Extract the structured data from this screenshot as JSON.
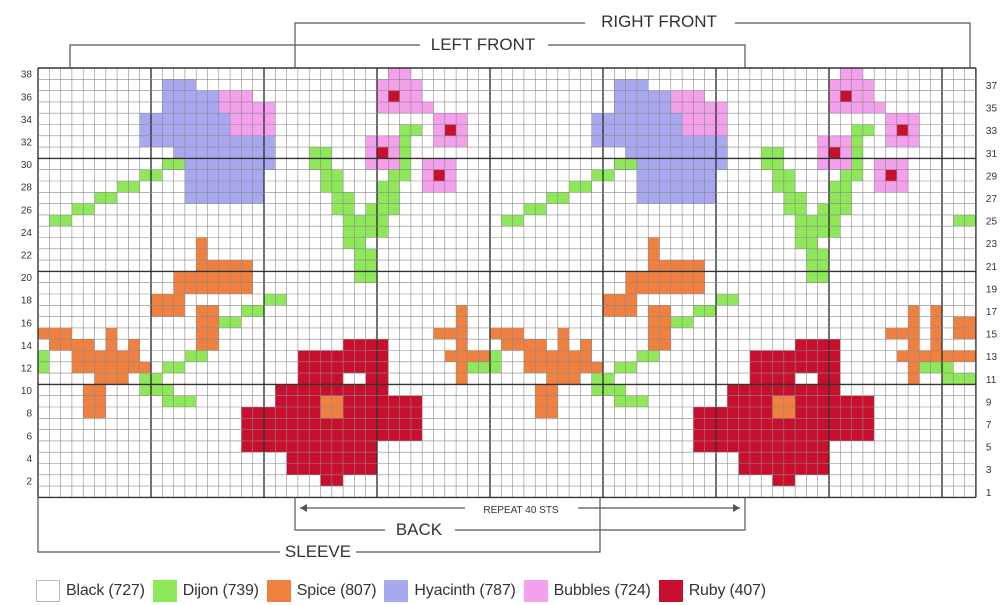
{
  "brackets": {
    "right_front": "RIGHT FRONT",
    "left_front": "LEFT FRONT",
    "repeat": "REPEAT 40 STS",
    "back": "BACK",
    "sleeve": "SLEEVE"
  },
  "rows_left": [
    "38",
    "36",
    "34",
    "32",
    "30",
    "28",
    "26",
    "24",
    "22",
    "20",
    "18",
    "16",
    "14",
    "12",
    "10",
    "8",
    "6",
    "4",
    "2"
  ],
  "rows_right": [
    "37",
    "35",
    "33",
    "31",
    "29",
    "27",
    "25",
    "23",
    "21",
    "19",
    "17",
    "15",
    "13",
    "11",
    "9",
    "7",
    "5",
    "3",
    "1"
  ],
  "legend": [
    {
      "label": "Black (727)",
      "color": "#ffffff"
    },
    {
      "label": "Dijon (739)",
      "color": "#8ee85a"
    },
    {
      "label": "Spice (807)",
      "color": "#f08040"
    },
    {
      "label": "Hyacinth (787)",
      "color": "#a8a8f0"
    },
    {
      "label": "Bubbles (724)",
      "color": "#f4a0ec"
    },
    {
      "label": "Ruby (407)",
      "color": "#c8102e"
    }
  ]
}
